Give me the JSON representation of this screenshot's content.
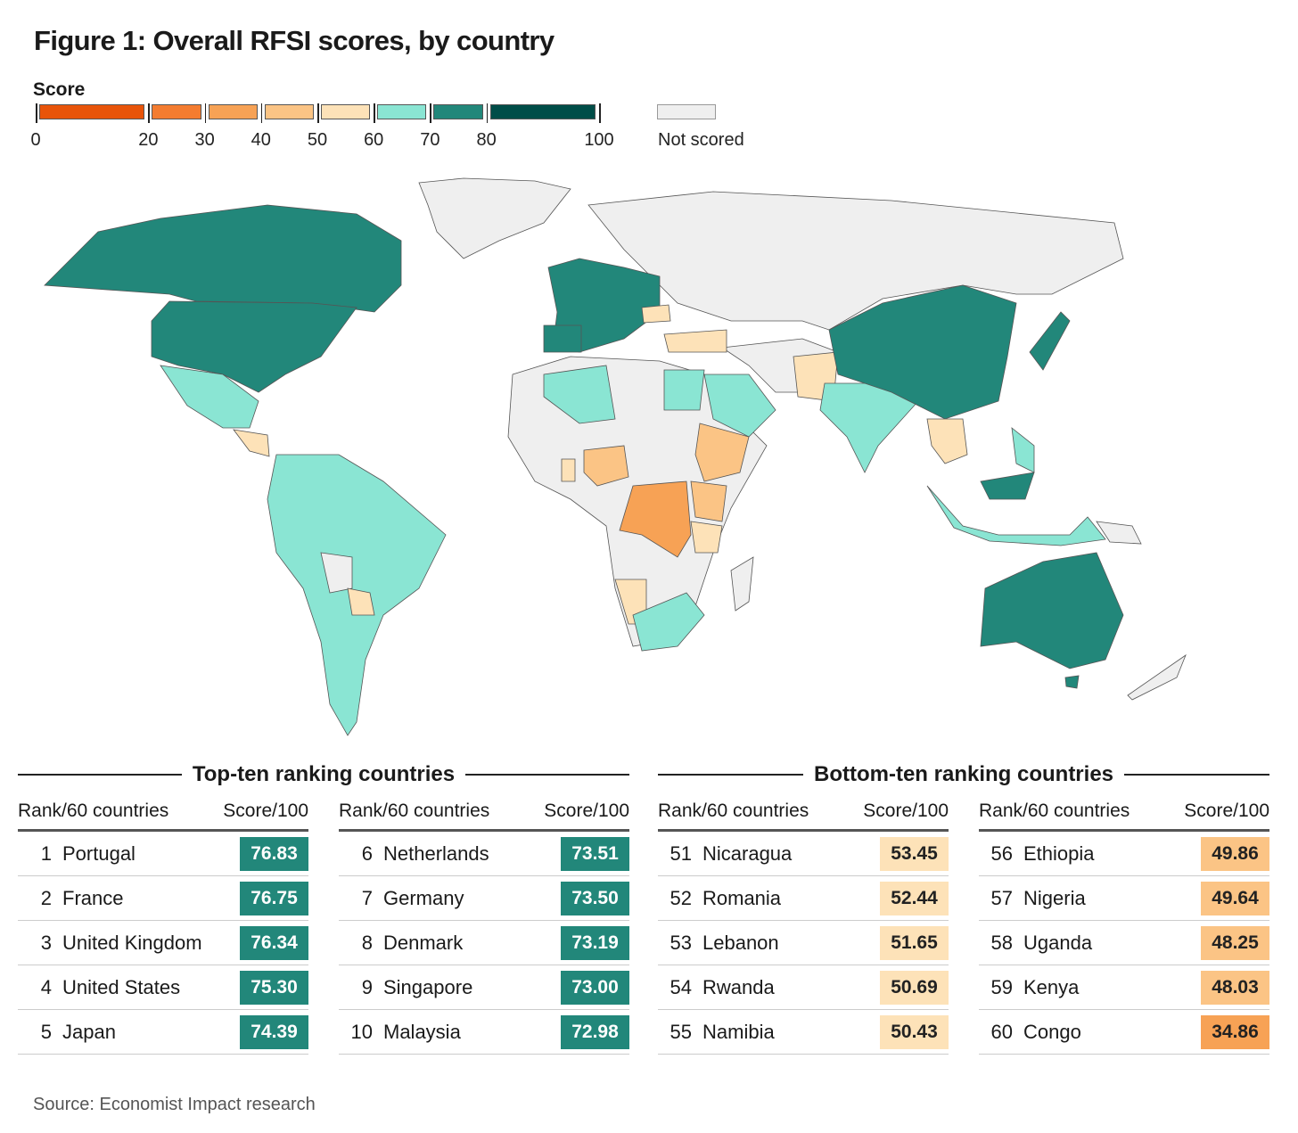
{
  "title": "Figure 1: Overall RFSI scores, by country",
  "legend": {
    "title": "Score",
    "bins": [
      {
        "min": 0,
        "max": 20,
        "color": "#e8540a"
      },
      {
        "min": 20,
        "max": 30,
        "color": "#f47c30"
      },
      {
        "min": 30,
        "max": 40,
        "color": "#f7a255"
      },
      {
        "min": 40,
        "max": 50,
        "color": "#fbc485"
      },
      {
        "min": 50,
        "max": 60,
        "color": "#fde2b8"
      },
      {
        "min": 60,
        "max": 70,
        "color": "#8ae5d3"
      },
      {
        "min": 70,
        "max": 80,
        "color": "#22877a"
      },
      {
        "min": 80,
        "max": 100,
        "color": "#004d48"
      }
    ],
    "tick_labels": [
      "0",
      "20",
      "30",
      "40",
      "50",
      "60",
      "70",
      "80",
      "100"
    ],
    "not_scored_label": "Not scored",
    "not_scored_color": "#efefef"
  },
  "top_ten": {
    "heading": "Top-ten ranking countries",
    "rank_header": "Rank/60 countries",
    "score_header": "Score/100",
    "rows": [
      {
        "rank": "1",
        "country": "Portugal",
        "score": "76.83"
      },
      {
        "rank": "2",
        "country": "France",
        "score": "76.75"
      },
      {
        "rank": "3",
        "country": "United Kingdom",
        "score": "76.34"
      },
      {
        "rank": "4",
        "country": "United States",
        "score": "75.30"
      },
      {
        "rank": "5",
        "country": "Japan",
        "score": "74.39"
      },
      {
        "rank": "6",
        "country": "Netherlands",
        "score": "73.51"
      },
      {
        "rank": "7",
        "country": "Germany",
        "score": "73.50"
      },
      {
        "rank": "8",
        "country": "Denmark",
        "score": "73.19"
      },
      {
        "rank": "9",
        "country": "Singapore",
        "score": "73.00"
      },
      {
        "rank": "10",
        "country": "Malaysia",
        "score": "72.98"
      }
    ]
  },
  "bottom_ten": {
    "heading": "Bottom-ten ranking countries",
    "rank_header": "Rank/60 countries",
    "score_header": "Score/100",
    "rows": [
      {
        "rank": "51",
        "country": "Nicaragua",
        "score": "53.45"
      },
      {
        "rank": "52",
        "country": "Romania",
        "score": "52.44"
      },
      {
        "rank": "53",
        "country": "Lebanon",
        "score": "51.65"
      },
      {
        "rank": "54",
        "country": "Rwanda",
        "score": "50.69"
      },
      {
        "rank": "55",
        "country": "Namibia",
        "score": "50.43"
      },
      {
        "rank": "56",
        "country": "Ethiopia",
        "score": "49.86"
      },
      {
        "rank": "57",
        "country": "Nigeria",
        "score": "49.64"
      },
      {
        "rank": "58",
        "country": "Uganda",
        "score": "48.25"
      },
      {
        "rank": "59",
        "country": "Kenya",
        "score": "48.03"
      },
      {
        "rank": "60",
        "country": "Congo",
        "score": "34.86"
      }
    ]
  },
  "source": "Source: Economist Impact research"
}
